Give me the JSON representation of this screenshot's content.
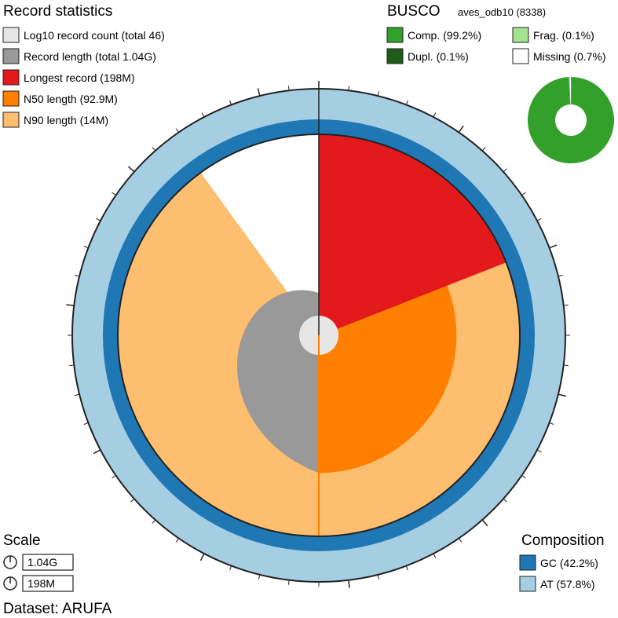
{
  "record_statistics": {
    "heading": "Record statistics",
    "items": [
      {
        "label": "Log10 record count (total 46)",
        "color": "#e6e6e6"
      },
      {
        "label": "Record length (total 1.04G)",
        "color": "#999999"
      },
      {
        "label": "Longest record (198M)",
        "color": "#e31a1c"
      },
      {
        "label": "N50 length (92.9M)",
        "color": "#ff7f00"
      },
      {
        "label": "N90 length (14M)",
        "color": "#fdbf6f"
      }
    ]
  },
  "busco": {
    "heading": "BUSCO",
    "lineage": "aves_odb10 (8338)",
    "items": [
      {
        "label": "Comp. (99.2%)",
        "color": "#33a02c",
        "percent": 99.2
      },
      {
        "label": "Frag. (0.1%)",
        "color": "#a3e28f",
        "percent": 0.1
      },
      {
        "label": "Dupl. (0.1%)",
        "color": "#1e5c1a",
        "percent": 0.1
      },
      {
        "label": "Missing (0.7%)",
        "color": "#ffffff",
        "percent": 0.7
      }
    ]
  },
  "scale": {
    "heading": "Scale",
    "circumference": "1.04G",
    "radius": "198M"
  },
  "dataset": "Dataset: ARUFA",
  "composition": {
    "heading": "Composition",
    "items": [
      {
        "label": "GC (42.2%)",
        "color": "#1f78b4",
        "percent": 42.2
      },
      {
        "label": "AT (57.8%)",
        "color": "#a6cee3",
        "percent": 57.8
      }
    ]
  },
  "chart_data": {
    "type": "snail",
    "total_length_bp": 1040000000,
    "record_count": 46,
    "longest_record_bp": 198000000,
    "n50_bp": 92900000,
    "n90_bp": 14000000,
    "gc_percent": 42.2,
    "at_percent": 57.8,
    "busco": {
      "complete": 99.2,
      "fragmented": 0.1,
      "duplicated": 0.1,
      "missing": 0.7
    },
    "colors": {
      "count": "#e6e6e6",
      "length": "#999999",
      "longest": "#e31a1c",
      "n50": "#ff7f00",
      "n90": "#fdbf6f",
      "gc": "#1f78b4",
      "at": "#a6cee3"
    }
  }
}
